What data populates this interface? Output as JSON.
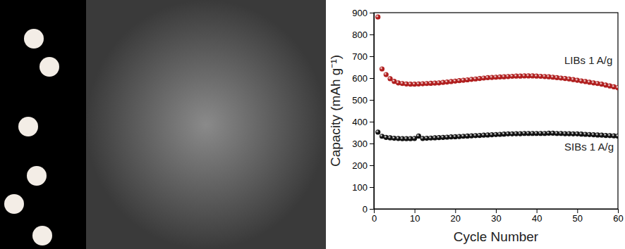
{
  "chart_data": {
    "type": "scatter",
    "marker": "circle",
    "x_label": "Cycle Number",
    "y_label": "Capacity (mAh g⁻¹)",
    "x": [
      1,
      2,
      3,
      4,
      5,
      6,
      7,
      8,
      9,
      10,
      11,
      12,
      13,
      14,
      15,
      16,
      17,
      18,
      19,
      20,
      21,
      22,
      23,
      24,
      25,
      26,
      27,
      28,
      29,
      30,
      31,
      32,
      33,
      34,
      35,
      36,
      37,
      38,
      39,
      40,
      41,
      42,
      43,
      44,
      45,
      46,
      47,
      48,
      49,
      50,
      51,
      52,
      53,
      54,
      55,
      56,
      57,
      58,
      59,
      60
    ],
    "series": [
      {
        "name": "LIBs  1 A/g",
        "color": "#b01e1e",
        "values": [
          880,
          642,
          616,
          597,
          585,
          578,
          575,
          573,
          572,
          572,
          573,
          574,
          575,
          576,
          577,
          578,
          580,
          582,
          584,
          586,
          588,
          590,
          592,
          594,
          596,
          598,
          600,
          602,
          603,
          604,
          605,
          606,
          607,
          608,
          609,
          609,
          610,
          610,
          610,
          609,
          608,
          607,
          606,
          604,
          602,
          600,
          598,
          596,
          593,
          590,
          587,
          584,
          581,
          578,
          575,
          572,
          568,
          564,
          560,
          556
        ]
      },
      {
        "name": "SIBs  1 A/g",
        "color": "#111111",
        "values": [
          352,
          333,
          328,
          326,
          324,
          323,
          322,
          322,
          322,
          323,
          334,
          323,
          324,
          325,
          326,
          327,
          328,
          329,
          330,
          331,
          332,
          333,
          334,
          335,
          336,
          337,
          338,
          339,
          340,
          341,
          342,
          343,
          344,
          344,
          345,
          345,
          346,
          346,
          346,
          346,
          346,
          346,
          347,
          347,
          346,
          346,
          345,
          345,
          344,
          344,
          343,
          342,
          341,
          340,
          339,
          338,
          337,
          336,
          335,
          334
        ]
      }
    ],
    "xlim": [
      0,
      60
    ],
    "xticks": [
      0,
      10,
      20,
      30,
      40,
      50,
      60
    ],
    "ylim": [
      0,
      900
    ],
    "yticks": [
      0,
      100,
      200,
      300,
      400,
      500,
      600,
      700,
      800,
      900
    ]
  }
}
